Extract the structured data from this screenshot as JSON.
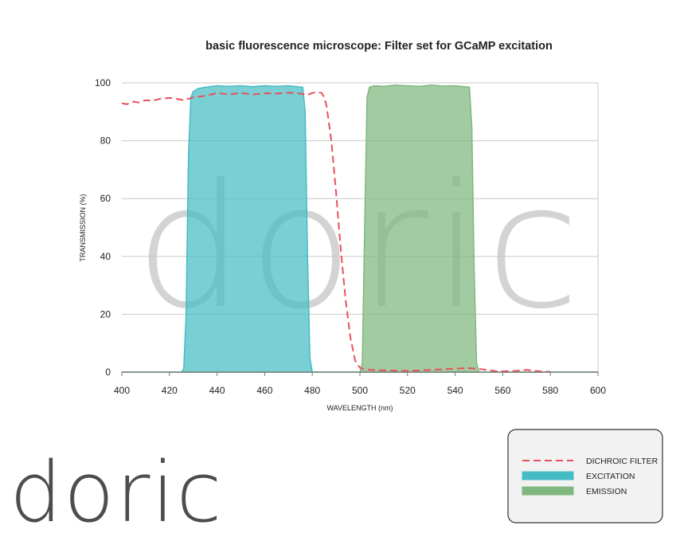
{
  "chart_data": {
    "type": "area",
    "title": "basic fluorescence microscope: Filter set for GCaMP excitation",
    "xlabel": "WAVELENGTH (nm)",
    "ylabel": "TRANSMISSION (%)",
    "xlim": [
      400,
      600
    ],
    "ylim": [
      0,
      100
    ],
    "xticks": [
      400,
      420,
      440,
      460,
      480,
      500,
      520,
      540,
      560,
      580,
      600
    ],
    "yticks": [
      0,
      20,
      40,
      60,
      80,
      100
    ],
    "grid": "horizontal",
    "legend_position": "bottom-right",
    "series": [
      {
        "name": "DICHROIC FILTER",
        "style": "dashed-line",
        "color": "#e8505b",
        "x": [
          400,
          402,
          405,
          407,
          410,
          413,
          416,
          420,
          423,
          426,
          430,
          435,
          440,
          445,
          450,
          455,
          460,
          465,
          470,
          475,
          478,
          480,
          482,
          484,
          485,
          486,
          488,
          490,
          492,
          494,
          496,
          498,
          500,
          502,
          505,
          510,
          520,
          530,
          540,
          545,
          550,
          555,
          558,
          560,
          565,
          570,
          575,
          580
        ],
        "y": [
          93,
          92.6,
          93.5,
          93.2,
          94,
          93.8,
          94.5,
          94.8,
          94.5,
          94,
          95,
          95.5,
          96.5,
          96,
          96.5,
          96,
          96.4,
          96.3,
          96.6,
          96.3,
          95.8,
          96.5,
          96.8,
          96.5,
          95,
          92,
          80,
          62,
          42,
          25,
          12,
          4,
          1.5,
          1,
          0.8,
          0.6,
          0.4,
          0.8,
          1.2,
          1.4,
          1.1,
          0.6,
          0.2,
          0.3,
          0.4,
          0.8,
          0.3,
          0.1
        ]
      },
      {
        "name": "EXCITATION",
        "style": "filled-area",
        "color": "#45bcc4",
        "x": [
          400,
          425,
          426,
          427,
          428,
          429,
          430,
          432,
          435,
          440,
          445,
          450,
          455,
          460,
          465,
          470,
          476,
          477,
          478,
          479,
          480,
          600
        ],
        "y": [
          0,
          0,
          1,
          20,
          75,
          95,
          97,
          98,
          98.5,
          99,
          98.8,
          99,
          98.7,
          99,
          98.8,
          99,
          98.5,
          90,
          40,
          5,
          0,
          0
        ]
      },
      {
        "name": "EMISSION",
        "style": "filled-area",
        "color": "#7fb77e",
        "x": [
          400,
          500,
          501,
          502,
          503,
          504,
          506,
          510,
          515,
          520,
          525,
          530,
          535,
          540,
          546,
          547,
          548,
          549,
          550,
          600
        ],
        "y": [
          0,
          0,
          3,
          50,
          95,
          98.5,
          99,
          98.8,
          99.2,
          99,
          98.8,
          99.2,
          98.9,
          99,
          98.5,
          85,
          35,
          3,
          0,
          0
        ]
      }
    ]
  },
  "watermark": {
    "text": "doric"
  },
  "logo": {
    "text": "doric"
  },
  "colors": {
    "grid": "#c8c8c8",
    "axis": "#7a7a7a",
    "text": "#222222",
    "watermark": "#d3d3d3",
    "logo": "#4d4d4d",
    "legend_bg": "#f2f2f2",
    "legend_border": "#333333"
  }
}
